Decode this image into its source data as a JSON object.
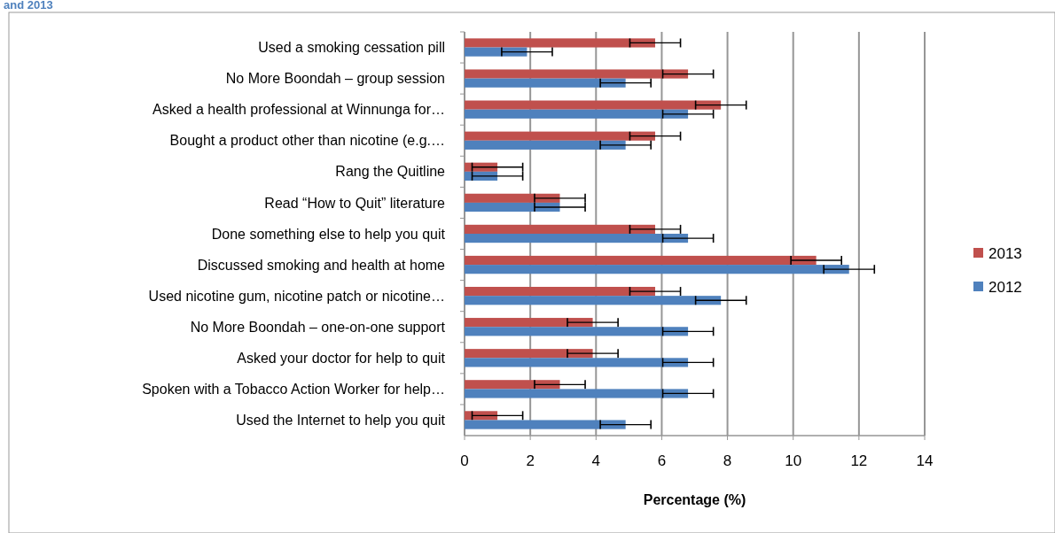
{
  "chart_data": {
    "type": "bar",
    "orientation": "horizontal",
    "title": "and 2013",
    "xlabel": "Percentage (%)",
    "categories": [
      "Used a smoking cessation pill",
      "No More Boondah – group session",
      "Asked a health professional at Winnunga for…",
      "Bought a product other than nicotine (e.g.…",
      "Rang the Quitline",
      "Read “How to Quit” literature",
      "Done something else to help you quit",
      "Discussed smoking and health at home",
      "Used nicotine gum, nicotine patch or nicotine…",
      "No More Boondah – one-on-one support",
      "Asked your doctor for help to quit",
      "Spoken with a Tobacco Action Worker for help…",
      "Used the Internet to help you quit"
    ],
    "series": [
      {
        "name": "2013",
        "color": "#c0504d",
        "values": [
          5.8,
          6.8,
          7.8,
          5.8,
          1.0,
          2.9,
          5.8,
          10.7,
          5.8,
          3.9,
          3.9,
          2.9,
          1.0
        ],
        "errors": [
          0.77,
          0.77,
          0.77,
          0.77,
          0.77,
          0.77,
          0.77,
          0.77,
          0.77,
          0.77,
          0.77,
          0.77,
          0.77
        ]
      },
      {
        "name": "2012",
        "color": "#4f81bd",
        "values": [
          1.9,
          4.9,
          6.8,
          4.9,
          1.0,
          2.9,
          6.8,
          11.7,
          7.8,
          6.8,
          6.8,
          6.8,
          4.9
        ],
        "errors": [
          0.77,
          0.77,
          0.77,
          0.77,
          0.77,
          0.77,
          0.77,
          0.77,
          0.77,
          0.77,
          0.77,
          0.77,
          0.77
        ]
      }
    ],
    "xlim": [
      0,
      14
    ],
    "xticks": [
      0,
      2,
      4,
      6,
      8,
      10,
      12,
      14
    ],
    "grid": "x",
    "legend": "right"
  }
}
